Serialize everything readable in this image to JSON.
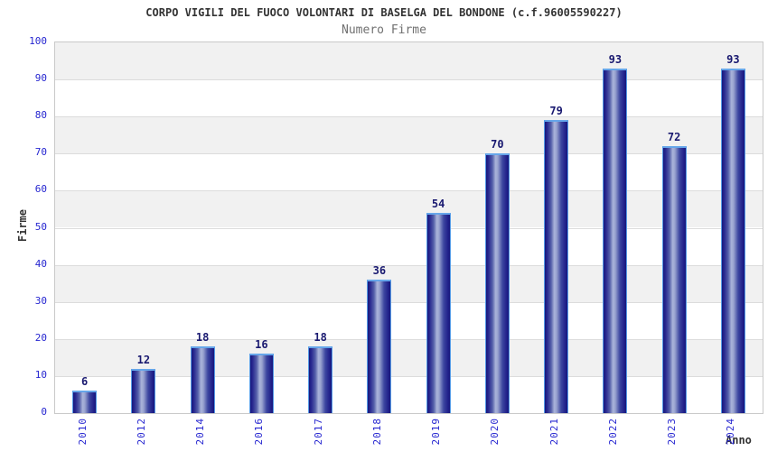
{
  "header": {
    "title": "CORPO VIGILI DEL FUOCO VOLONTARI DI BASELGA DEL BONDONE (c.f.96005590227)",
    "subtitle": "Numero Firme"
  },
  "axes": {
    "x_title": "Anno",
    "y_title": "Firme"
  },
  "colors": {
    "tick_label_blue": "#2626d0",
    "value_label_navy": "#191970",
    "title_gray": "#333333",
    "subtitle_gray": "#707070",
    "band_gray": "#f1f1f1",
    "band_white": "#ffffff",
    "grid_line": "#dcdcdc",
    "bar_edge_dark": "#18187c",
    "bar_highlight": "#aab4da",
    "bar_border": "#559ae6"
  },
  "chart_data": {
    "type": "bar",
    "title": "CORPO VIGILI DEL FUOCO VOLONTARI DI BASELGA DEL BONDONE (c.f.96005590227)",
    "subtitle": "Numero Firme",
    "categories": [
      "2010",
      "2012",
      "2014",
      "2016",
      "2017",
      "2018",
      "2019",
      "2020",
      "2021",
      "2022",
      "2023",
      "2024"
    ],
    "values": [
      6,
      12,
      18,
      16,
      18,
      36,
      54,
      70,
      79,
      93,
      72,
      93
    ],
    "xlabel": "Anno",
    "ylabel": "Firme",
    "ylim": [
      0,
      100
    ],
    "yticks": [
      0,
      10,
      20,
      30,
      40,
      50,
      60,
      70,
      80,
      90,
      100
    ],
    "grid": "horizontal-bands-alternating",
    "legend": "none",
    "bar_labels": "above-bars"
  }
}
